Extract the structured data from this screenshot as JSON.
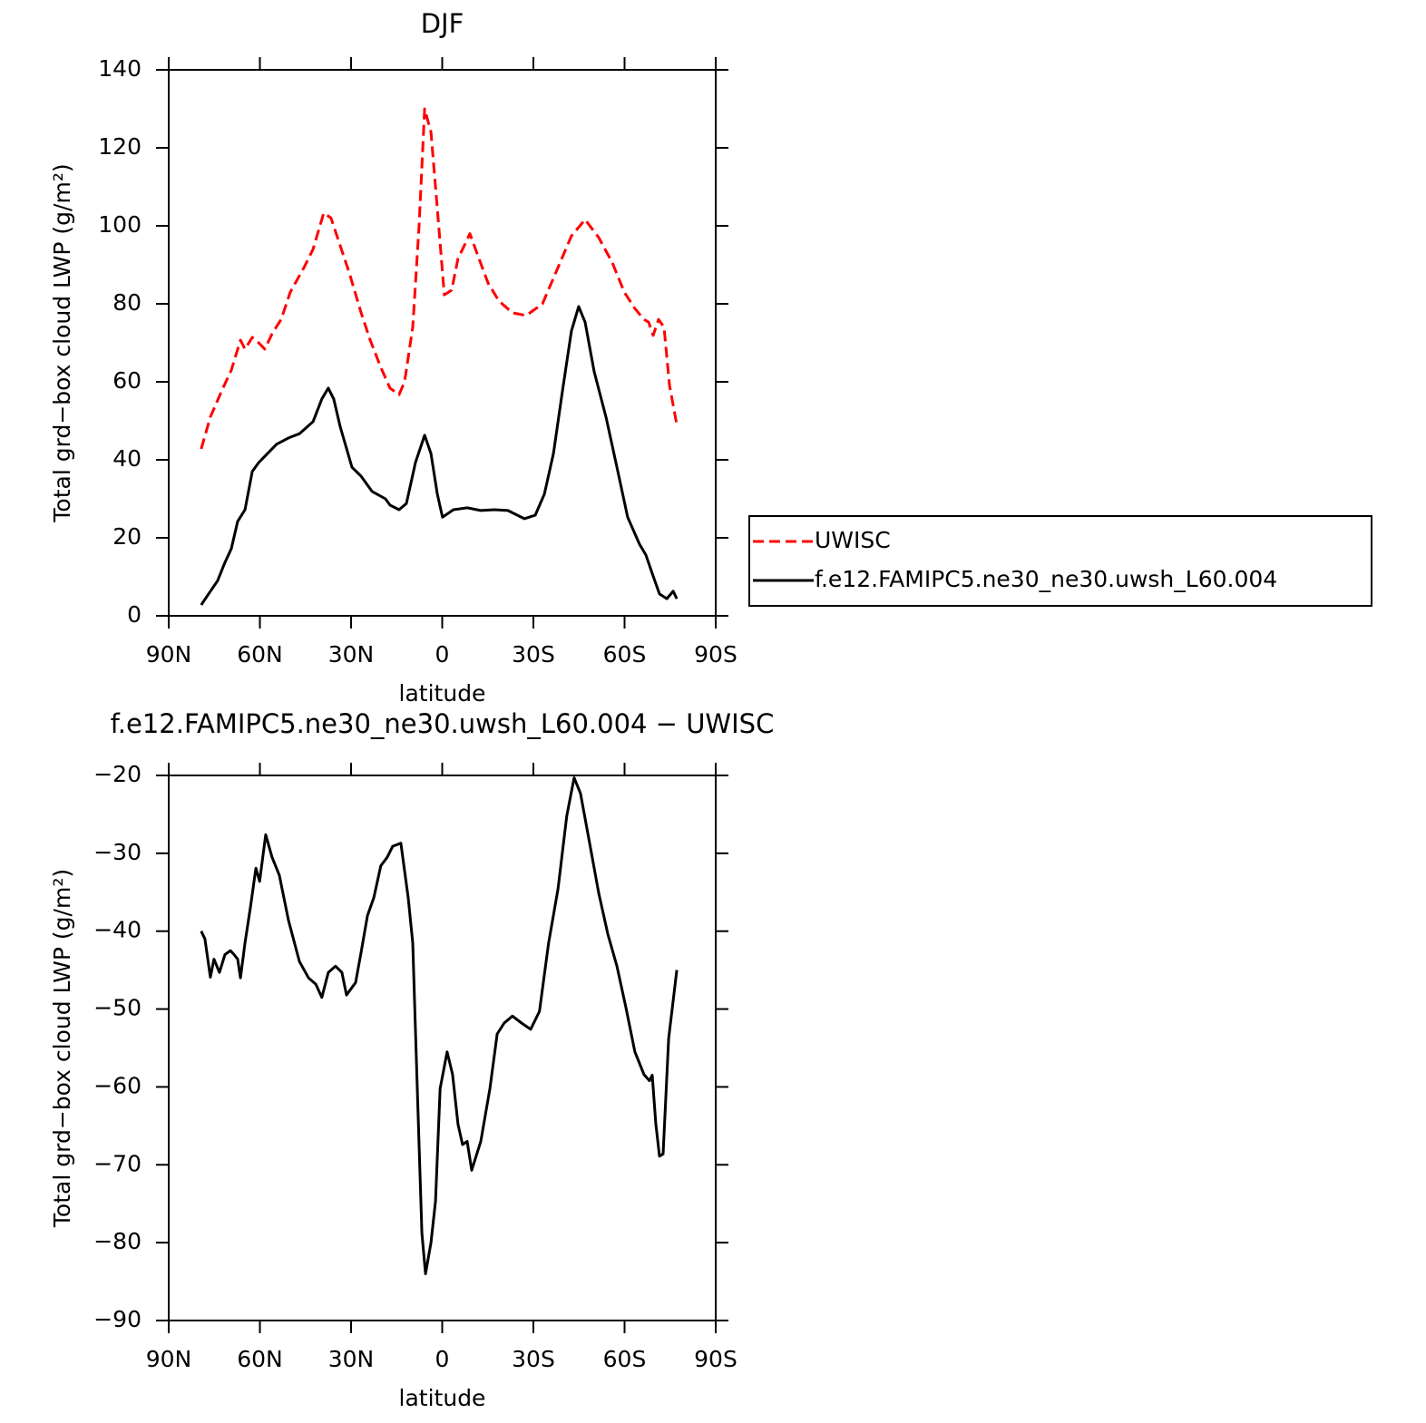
{
  "chart_data": [
    {
      "type": "line",
      "title": "DJF",
      "xlabel": "latitude",
      "ylabel": "Total grd−box cloud LWP (g/m²)",
      "xlim": [
        90,
        -90
      ],
      "xticks": [
        {
          "value": 90,
          "label": "90N"
        },
        {
          "value": 60,
          "label": "60N"
        },
        {
          "value": 30,
          "label": "30N"
        },
        0,
        {
          "value": -30,
          "label": "30S"
        },
        {
          "value": -60,
          "label": "60S"
        },
        {
          "value": -90,
          "label": "90S"
        }
      ],
      "ylim": [
        0,
        140
      ],
      "yticks": [
        0,
        20,
        40,
        60,
        80,
        100,
        120,
        140
      ],
      "legend": "right",
      "series": [
        {
          "name": "UWISC",
          "color": "#ff0000",
          "dashed": true,
          "x": [
            79.3,
            76.3,
            72.4,
            69.4,
            66.4,
            64.9,
            62.5,
            60.4,
            58.4,
            56,
            53,
            50,
            45.5,
            42.5,
            39,
            36.6,
            33.6,
            30.6,
            26.7,
            23.7,
            20.2,
            17.2,
            14.2,
            12.4,
            9.7,
            7.6,
            5.8,
            3.7,
            1.6,
            -0.7,
            -3.1,
            -5.2,
            -7.3,
            -9.1,
            -12.1,
            -15.1,
            -18.7,
            -23.1,
            -27.6,
            -33,
            -38.1,
            -42.5,
            -47,
            -51.5,
            -56,
            -59.9,
            -63.4,
            -66.4,
            -67.9,
            -69.4,
            -71.2,
            -73,
            -74.8,
            -77.2
          ],
          "values": [
            42.8,
            51,
            58,
            63,
            70.7,
            68.4,
            71.4,
            70,
            68.4,
            72.3,
            76,
            83,
            89.3,
            94,
            103.3,
            102,
            95,
            88,
            77.7,
            70.7,
            63.7,
            58.4,
            56.7,
            60,
            74,
            100,
            130,
            124,
            104.4,
            82.3,
            83.5,
            91.6,
            95,
            98,
            91.6,
            85.3,
            80.7,
            77.7,
            77,
            80,
            89.3,
            97.4,
            101.6,
            97,
            90.5,
            83,
            78.8,
            76,
            75.3,
            71.9,
            76,
            74,
            59,
            49
          ]
        },
        {
          "name": "f.e12.FAMIPC5.ne30_ne30.uwsh_L60.004",
          "color": "#000000",
          "dashed": false,
          "x": [
            79.3,
            76.9,
            73.9,
            71.5,
            69.4,
            67.3,
            64.9,
            62.5,
            60.4,
            57.5,
            54.5,
            50.6,
            47,
            42.5,
            39.6,
            37.5,
            35.7,
            33.6,
            29.7,
            26.7,
            23.1,
            18.7,
            17.2,
            14.2,
            11.8,
            8.8,
            5.8,
            3.7,
            1.6,
            -0.1,
            -3.7,
            -8.2,
            -12.7,
            -17.2,
            -21.6,
            -27,
            -30.6,
            -33.6,
            -36.6,
            -39.6,
            -42.5,
            -44.9,
            -47,
            -50,
            -53.9,
            -57.5,
            -61,
            -64.9,
            -67,
            -69.4,
            -71.5,
            -73.9,
            -76,
            -77.2
          ],
          "values": [
            2.8,
            5.6,
            9,
            13.7,
            17.2,
            24.2,
            27.2,
            37,
            39.3,
            41.6,
            44,
            45.6,
            46.7,
            49.8,
            55.6,
            58.4,
            55.6,
            48.6,
            38.1,
            35.8,
            31.9,
            30,
            28.4,
            27.2,
            28.8,
            39.3,
            46.3,
            41.6,
            31.2,
            25.3,
            27.2,
            27.7,
            27,
            27.2,
            27,
            24.9,
            25.8,
            31.2,
            41.6,
            57.9,
            73,
            79.3,
            75.3,
            62.6,
            50.9,
            38.1,
            25.3,
            18.4,
            15.6,
            10.2,
            5.6,
            4.4,
            6.3,
            4.4
          ]
        }
      ]
    },
    {
      "type": "line",
      "title": "f.e12.FAMIPC5.ne30_ne30.uwsh_L60.004 − UWISC",
      "xlabel": "latitude",
      "ylabel": "Total grd−box cloud LWP (g/m²)",
      "xlim": [
        90,
        -90
      ],
      "xticks": [
        {
          "value": 90,
          "label": "90N"
        },
        {
          "value": 60,
          "label": "60N"
        },
        {
          "value": 30,
          "label": "30N"
        },
        0,
        {
          "value": -30,
          "label": "30S"
        },
        {
          "value": -60,
          "label": "60S"
        },
        {
          "value": -90,
          "label": "90S"
        }
      ],
      "ylim": [
        -90,
        -20
      ],
      "yticks": [
        {
          "value": -90,
          "label": "−90"
        },
        {
          "value": -80,
          "label": "−80"
        },
        {
          "value": -70,
          "label": "−70"
        },
        {
          "value": -60,
          "label": "−60"
        },
        {
          "value": -50,
          "label": "−50"
        },
        {
          "value": -40,
          "label": "−40"
        },
        {
          "value": -30,
          "label": "−30"
        },
        {
          "value": -20,
          "label": "−20"
        }
      ],
      "series": [
        {
          "color": "#000000",
          "dashed": false,
          "x": [
            79.3,
            78.1,
            76.3,
            75.1,
            73.3,
            71.5,
            69.7,
            68.5,
            67.3,
            66.4,
            64.9,
            63.1,
            61.3,
            60.1,
            58.1,
            56,
            53.6,
            50.6,
            47,
            44,
            41.6,
            39.6,
            37.5,
            35.1,
            33,
            31.5,
            28.5,
            26.7,
            24.6,
            22.5,
            20.2,
            18.1,
            16.3,
            13.6,
            11.2,
            9.7,
            8.2,
            6.7,
            5.5,
            3.7,
            2.2,
            0.7,
            -1.6,
            -3.4,
            -5.2,
            -6.7,
            -8.2,
            -9.7,
            -12.7,
            -15.7,
            -18.1,
            -20.4,
            -23.1,
            -26.1,
            -29.1,
            -32,
            -35,
            -38.1,
            -41,
            -43.4,
            -45.5,
            -48.5,
            -51.5,
            -54.5,
            -57.5,
            -60.4,
            -63.4,
            -66.4,
            -68.2,
            -69.1,
            -70.3,
            -71.5,
            -72.7,
            -74.5,
            -77.2
          ],
          "values": [
            -40,
            -41,
            -45.9,
            -43.6,
            -45.3,
            -43,
            -42.5,
            -43,
            -43.6,
            -46,
            -41.5,
            -36.9,
            -31.9,
            -33.6,
            -27.6,
            -30.5,
            -32.8,
            -38.6,
            -43.9,
            -46,
            -46.8,
            -48.5,
            -45.3,
            -44.5,
            -45.3,
            -48.2,
            -46.6,
            -42.7,
            -38,
            -35.7,
            -31.6,
            -30.5,
            -29.1,
            -28.7,
            -35.7,
            -41.5,
            -60.2,
            -78.8,
            -84,
            -80,
            -74.7,
            -60.2,
            -55.5,
            -58.4,
            -64.8,
            -67.4,
            -67,
            -70.7,
            -67,
            -60.2,
            -53.2,
            -51.8,
            -50.9,
            -51.8,
            -52.6,
            -50.3,
            -41.5,
            -34.6,
            -25.2,
            -20.3,
            -22.3,
            -28.7,
            -35.1,
            -40.4,
            -44.5,
            -49.7,
            -55.5,
            -58.4,
            -59.2,
            -58.5,
            -64.8,
            -68.9,
            -68.6,
            -53.8,
            -45
          ]
        }
      ]
    }
  ]
}
